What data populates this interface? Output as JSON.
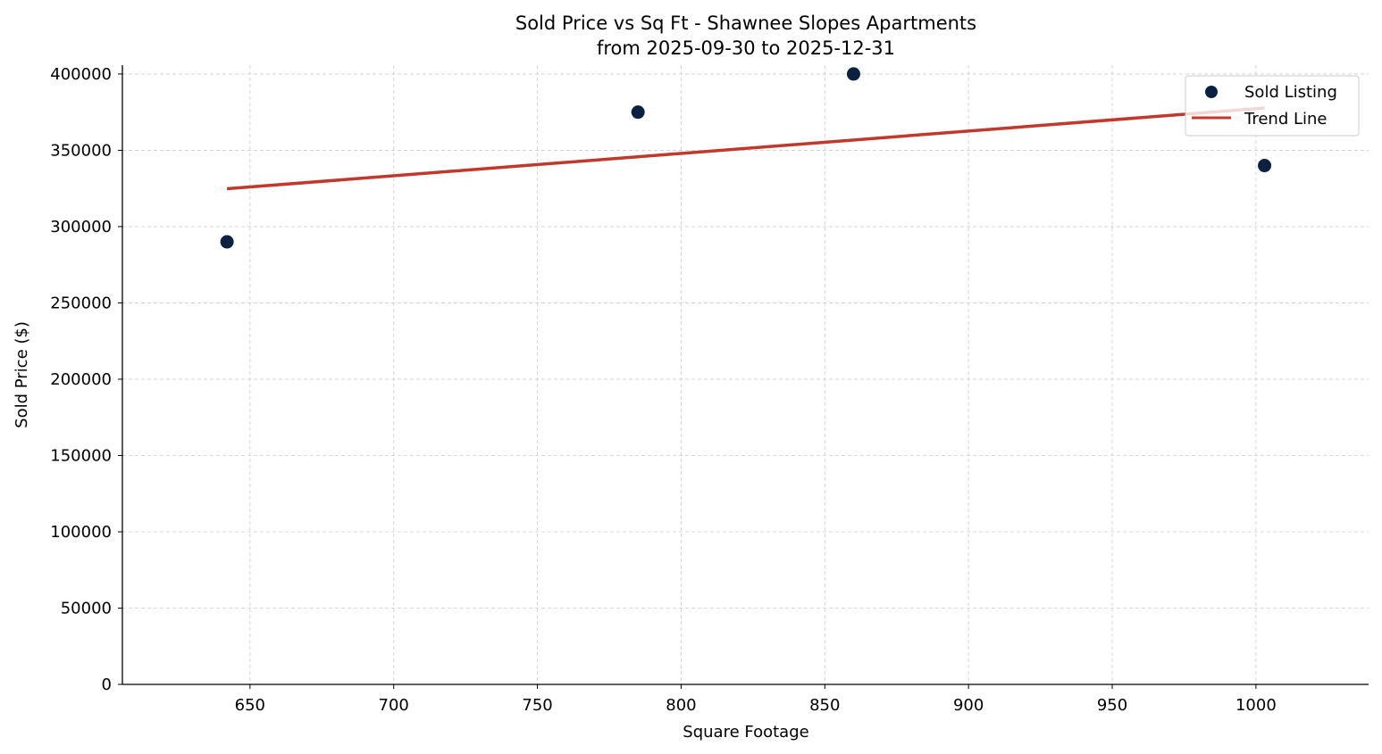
{
  "chart_data": {
    "type": "scatter",
    "title": "Sold Price vs Sq Ft - Shawnee Slopes Apartments",
    "subtitle": "from 2025-09-30 to 2025-12-31",
    "xlabel": "Square Footage",
    "ylabel": "Sold Price ($)",
    "xlim": [
      605.6,
      1039.2
    ],
    "ylim": [
      0,
      405800
    ],
    "xticks": [
      650,
      700,
      750,
      800,
      850,
      900,
      950,
      1000
    ],
    "yticks": [
      0,
      50000,
      100000,
      150000,
      200000,
      250000,
      300000,
      350000,
      400000
    ],
    "grid": true,
    "legend_position": "top-right",
    "series": [
      {
        "name": "Sold Listing",
        "kind": "scatter",
        "color": "#0b2140",
        "x": [
          642,
          785,
          860,
          1003
        ],
        "y": [
          290000,
          375000,
          400000,
          340000
        ]
      },
      {
        "name": "Trend Line",
        "kind": "line",
        "color": "#c0392b",
        "x": [
          642,
          1003
        ],
        "y": [
          324800,
          377700
        ]
      }
    ]
  }
}
